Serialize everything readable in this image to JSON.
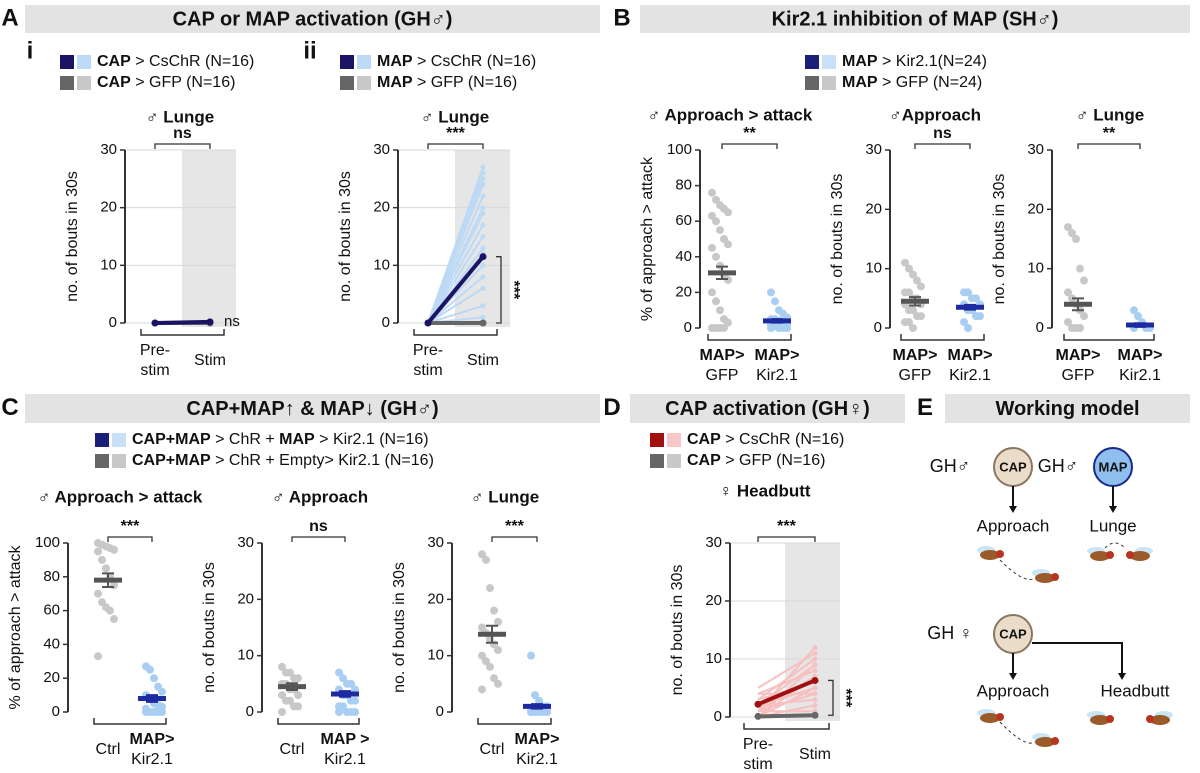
{
  "panels": [
    {
      "letter": "A",
      "title": "CAP or MAP activation (GH♂)"
    },
    {
      "letter": "B",
      "title": "Kir2.1 inhibition of MAP  (SH♂)"
    },
    {
      "letter": "C",
      "title": "CAP+MAP↑  &  MAP↓  (GH♂)"
    },
    {
      "letter": "D",
      "title": "CAP activation (GH♀)"
    },
    {
      "letter": "E",
      "title": "Working model"
    }
  ],
  "chart_data": [
    {
      "type": "paired",
      "sublabel": "i",
      "title": "♂  Lunge",
      "y_label": "no. of bouts in 30s",
      "categories": [
        [
          "Pre-",
          "stim"
        ],
        [
          "Stim"
        ]
      ],
      "ylim": [
        0,
        30
      ],
      "yticks": [
        0,
        10,
        20,
        30
      ],
      "grid": true,
      "stim_shade": true,
      "legend": [
        {
          "parts": [
            {
              "text": "CAP",
              "bold": true
            },
            {
              "text": " > CsChR (N=16)"
            }
          ],
          "color": "#1b1464",
          "light_color": "#bcd9f5"
        },
        {
          "parts": [
            {
              "text": "CAP",
              "bold": true
            },
            {
              "text": " > GFP (N=16)"
            }
          ],
          "color": "#666666",
          "light_color": "#c8c8c8"
        }
      ],
      "series": [
        {
          "color": "#1b1464",
          "light_color": "#bcd9f5",
          "values": [
            0,
            0.2
          ],
          "pairs": []
        },
        {
          "color": "#666666",
          "light_color": "#c8c8c8",
          "values": [
            0,
            0
          ],
          "pairs": []
        }
      ],
      "sig_top": "ns",
      "sig_side": "ns",
      "sig_side_rotated": false
    },
    {
      "type": "paired",
      "sublabel": "ii",
      "title": "♂  Lunge",
      "y_label": "no. of bouts in 30s",
      "categories": [
        [
          "Pre-",
          "stim"
        ],
        [
          "Stim"
        ]
      ],
      "ylim": [
        0,
        30
      ],
      "yticks": [
        0,
        10,
        20,
        30
      ],
      "grid": true,
      "stim_shade": true,
      "legend": [
        {
          "parts": [
            {
              "text": "MAP",
              "bold": true
            },
            {
              "text": " > CsChR (N=16)"
            }
          ],
          "color": "#1b1464",
          "light_color": "#bcd9f5"
        },
        {
          "parts": [
            {
              "text": "MAP",
              "bold": true
            },
            {
              "text": " > GFP (N=16)"
            }
          ],
          "color": "#666666",
          "light_color": "#c8c8c8"
        }
      ],
      "series": [
        {
          "color": "#1b1464",
          "light_color": "#bcd9f5",
          "values": [
            0,
            11.5
          ],
          "pairs": [
            [
              0,
              27
            ],
            [
              0,
              26
            ],
            [
              0,
              25
            ],
            [
              0,
              24
            ],
            [
              0,
              22
            ],
            [
              0,
              20
            ],
            [
              0,
              19
            ],
            [
              0,
              17
            ],
            [
              0,
              15
            ],
            [
              0,
              13
            ],
            [
              0,
              12
            ],
            [
              0,
              10
            ],
            [
              0,
              8
            ],
            [
              0,
              6
            ],
            [
              0,
              3
            ],
            [
              0,
              1
            ]
          ]
        },
        {
          "color": "#666666",
          "light_color": "#c8c8c8",
          "values": [
            0,
            0
          ],
          "pairs": []
        }
      ],
      "sig_top": "***",
      "sig_side": "***",
      "sig_side_rotated": true
    },
    {
      "type": "dot-mean",
      "title": "♂ Approach > attack",
      "y_label": "% of approach > attack",
      "categories": [
        [
          "MAP>",
          "GFP"
        ],
        [
          "MAP>",
          "Kir2.1"
        ]
      ],
      "ylim": [
        0,
        100
      ],
      "yticks": [
        0,
        20,
        40,
        60,
        80,
        100
      ],
      "legend": [
        {
          "parts": [
            {
              "text": "MAP",
              "bold": true
            },
            {
              "text": " > Kir2.1(N=24)"
            }
          ],
          "color": "#1a1f7a",
          "light_color": "#c8e0f8"
        },
        {
          "parts": [
            {
              "text": "MAP",
              "bold": true
            },
            {
              "text": " > GFP (N=24)"
            }
          ],
          "color": "#666666",
          "light_color": "#c8c8c8"
        }
      ],
      "groups": [
        {
          "color": "#555555",
          "point_color": "#c8c8c8",
          "mean": 31,
          "sem": 3.5,
          "values": [
            76,
            72,
            69,
            67,
            65,
            63,
            60,
            55,
            50,
            47,
            45,
            40,
            35,
            30,
            27,
            20,
            15,
            10,
            5,
            3,
            0,
            0,
            0,
            0
          ]
        },
        {
          "color": "#1e2aa0",
          "point_color": "#a8cff2",
          "mean": 4,
          "sem": 1,
          "values": [
            20,
            15,
            10,
            8,
            6,
            5,
            5,
            4,
            3,
            2,
            2,
            1,
            0,
            0,
            0,
            0
          ]
        }
      ],
      "sig_top": "**"
    },
    {
      "type": "dot-mean",
      "title": "♂Approach",
      "y_label": "no. of bouts in 30s",
      "categories": [
        [
          "MAP>",
          "GFP"
        ],
        [
          "MAP>",
          "Kir2.1"
        ]
      ],
      "ylim": [
        0,
        30
      ],
      "yticks": [
        0,
        10,
        20,
        30
      ],
      "groups": [
        {
          "color": "#555555",
          "point_color": "#c8c8c8",
          "mean": 4.5,
          "sem": 0.7,
          "values": [
            11,
            10,
            9,
            8,
            7,
            6,
            6,
            5,
            5,
            4,
            4,
            3,
            3,
            2,
            2,
            1,
            1,
            0
          ]
        },
        {
          "color": "#1e2aa0",
          "point_color": "#a8cff2",
          "mean": 3.5,
          "sem": 0.4,
          "values": [
            6,
            6,
            5,
            5,
            4,
            4,
            3,
            3,
            2,
            2,
            1,
            0
          ]
        }
      ],
      "sig_top": "ns"
    },
    {
      "type": "dot-mean",
      "title": "♂ Lunge",
      "y_label": "no. of bouts in 30s",
      "categories": [
        [
          "MAP>",
          "GFP"
        ],
        [
          "MAP>",
          "Kir2.1"
        ]
      ],
      "ylim": [
        0,
        30
      ],
      "yticks": [
        0,
        10,
        20,
        30
      ],
      "groups": [
        {
          "color": "#555555",
          "point_color": "#c8c8c8",
          "mean": 4,
          "sem": 1,
          "values": [
            17,
            16,
            15,
            10,
            8,
            6,
            5,
            4,
            3,
            2,
            1,
            0,
            0,
            0
          ]
        },
        {
          "color": "#1e2aa0",
          "point_color": "#a8cff2",
          "mean": 0.5,
          "sem": 0.3,
          "values": [
            3,
            2,
            1,
            0,
            0,
            0
          ]
        }
      ],
      "sig_top": "**"
    },
    {
      "type": "dot-mean",
      "title": "♂ Approach > attack",
      "y_label": "% of approach > attack",
      "categories": [
        [
          "Ctrl"
        ],
        [
          "MAP>",
          "Kir2.1"
        ]
      ],
      "ylim": [
        0,
        100
      ],
      "yticks": [
        0,
        20,
        40,
        60,
        80,
        100
      ],
      "legend": [
        {
          "parts": [
            {
              "text": "CAP+MAP",
              "bold": true
            },
            {
              "text": " > ChR + "
            },
            {
              "text": "MAP",
              "bold": true
            },
            {
              "text": " > Kir2.1 (N=16)"
            }
          ],
          "color": "#1a1f7a",
          "light_color": "#c8e0f8"
        },
        {
          "parts": [
            {
              "text": "CAP+MAP",
              "bold": true
            },
            {
              "text": " > ChR + Empty> Kir2.1 (N=16)"
            }
          ],
          "color": "#666666",
          "light_color": "#c8c8c8"
        }
      ],
      "groups": [
        {
          "color": "#555555",
          "point_color": "#c8c8c8",
          "mean": 78,
          "sem": 4,
          "values": [
            100,
            99,
            98,
            97,
            96,
            95,
            90,
            85,
            80,
            75,
            70,
            65,
            62,
            60,
            55,
            33
          ]
        },
        {
          "color": "#1e2aa0",
          "point_color": "#a8cff2",
          "mean": 8,
          "sem": 2,
          "values": [
            27,
            25,
            20,
            15,
            12,
            10,
            8,
            5,
            4,
            3,
            2,
            0,
            0,
            0,
            0,
            0
          ]
        }
      ],
      "sig_top": "***"
    },
    {
      "type": "dot-mean",
      "title": "♂ Approach",
      "y_label": "no. of bouts in 30s",
      "categories": [
        [
          "Ctrl"
        ],
        [
          "MAP >",
          "Kir2.1"
        ]
      ],
      "ylim": [
        0,
        30
      ],
      "yticks": [
        0,
        10,
        20,
        30
      ],
      "groups": [
        {
          "color": "#555555",
          "point_color": "#c8c8c8",
          "mean": 4.5,
          "sem": 0.6,
          "values": [
            8,
            7,
            7,
            6,
            6,
            5,
            5,
            4,
            4,
            3,
            3,
            2,
            2,
            1,
            1,
            0
          ]
        },
        {
          "color": "#1e2aa0",
          "point_color": "#a8cff2",
          "mean": 3.2,
          "sem": 0.5,
          "values": [
            7,
            6,
            5,
            5,
            4,
            4,
            3,
            3,
            2,
            2,
            1,
            1,
            0,
            0,
            0,
            0
          ]
        }
      ],
      "sig_top": "ns"
    },
    {
      "type": "dot-mean",
      "title": "♂ Lunge",
      "y_label": "no. of bouts in 30s",
      "categories": [
        [
          "Ctrl"
        ],
        [
          "MAP>",
          "Kir2.1"
        ]
      ],
      "ylim": [
        0,
        30
      ],
      "yticks": [
        0,
        10,
        20,
        30
      ],
      "groups": [
        {
          "color": "#555555",
          "point_color": "#c8c8c8",
          "mean": 13.8,
          "sem": 1.5,
          "values": [
            28,
            27,
            22,
            18,
            16,
            15,
            14,
            13,
            12,
            11,
            10,
            9,
            8,
            6,
            5,
            4
          ]
        },
        {
          "color": "#1e2aa0",
          "point_color": "#a8cff2",
          "mean": 1,
          "sem": 0.4,
          "values": [
            10,
            3,
            2,
            1,
            1,
            0,
            0,
            0,
            0,
            0,
            0,
            0
          ]
        }
      ],
      "sig_top": "***"
    },
    {
      "type": "paired",
      "title": "♀  Headbutt",
      "y_label": "no. of bouts in 30s",
      "categories": [
        [
          "Pre-",
          "stim"
        ],
        [
          "Stim"
        ]
      ],
      "ylim": [
        0,
        30
      ],
      "yticks": [
        0,
        10,
        20,
        30
      ],
      "grid": true,
      "stim_shade": true,
      "legend": [
        {
          "parts": [
            {
              "text": "CAP",
              "bold": true
            },
            {
              "text": " > CsChR (N=16)"
            }
          ],
          "color": "#a01010",
          "light_color": "#f7c6c6"
        },
        {
          "parts": [
            {
              "text": "CAP",
              "bold": true
            },
            {
              "text": " > GFP (N=16)"
            }
          ],
          "color": "#666666",
          "light_color": "#c8c8c8"
        }
      ],
      "series": [
        {
          "color": "#a01010",
          "light_color": "#f7c0c0",
          "values": [
            2.2,
            6.3
          ],
          "pairs": [
            [
              1,
              12
            ],
            [
              5,
              11
            ],
            [
              3,
              10
            ],
            [
              0,
              9
            ],
            [
              2,
              9
            ],
            [
              4,
              8
            ],
            [
              1,
              7
            ],
            [
              0,
              7
            ],
            [
              3,
              6
            ],
            [
              2,
              5
            ],
            [
              0,
              5
            ],
            [
              1,
              4
            ],
            [
              4,
              4
            ],
            [
              2,
              3
            ],
            [
              0,
              2
            ],
            [
              1,
              1
            ]
          ]
        },
        {
          "color": "#666666",
          "light_color": "#c8c8c8",
          "values": [
            0.1,
            0.3
          ],
          "pairs": []
        }
      ],
      "sig_top": "***",
      "sig_side": "***",
      "sig_side_rotated": true
    }
  ],
  "model": {
    "male_gh_1": "GH♂",
    "male_node_1": "CAP",
    "male_gh_2": "GH♂",
    "male_node_2": "MAP",
    "male_out_1": "Approach",
    "male_out_2": "Lunge",
    "female_gh": "GH ♀",
    "female_node": "CAP",
    "female_out_1": "Approach",
    "female_out_2": "Headbutt"
  }
}
